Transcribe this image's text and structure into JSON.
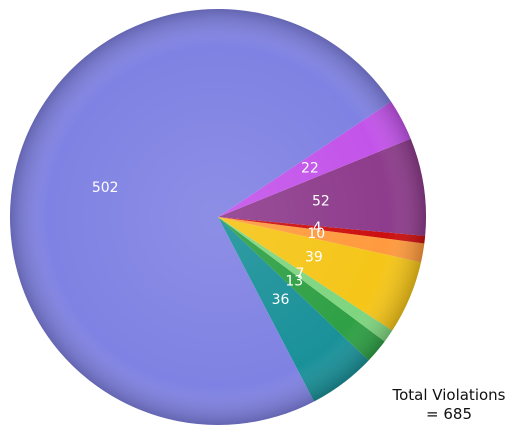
{
  "chart_data": {
    "type": "pie",
    "title": "",
    "slices": [
      {
        "value": 502,
        "label": "502",
        "color": "#8082e3"
      },
      {
        "value": 22,
        "label": "22",
        "color": "#c354ea"
      },
      {
        "value": 52,
        "label": "52",
        "color": "#8e3c8c"
      },
      {
        "value": 4,
        "label": "4",
        "color": "#cc1010"
      },
      {
        "value": 10,
        "label": "10",
        "color": "#ff9a3e"
      },
      {
        "value": 39,
        "label": "39",
        "color": "#f5c518"
      },
      {
        "value": 7,
        "label": "7",
        "color": "#7fd57f"
      },
      {
        "value": 13,
        "label": "13",
        "color": "#2fa045"
      },
      {
        "value": 36,
        "label": "36",
        "color": "#1a9199"
      }
    ],
    "annotation": {
      "line1": "Total Violations",
      "line2": "= 685"
    }
  }
}
